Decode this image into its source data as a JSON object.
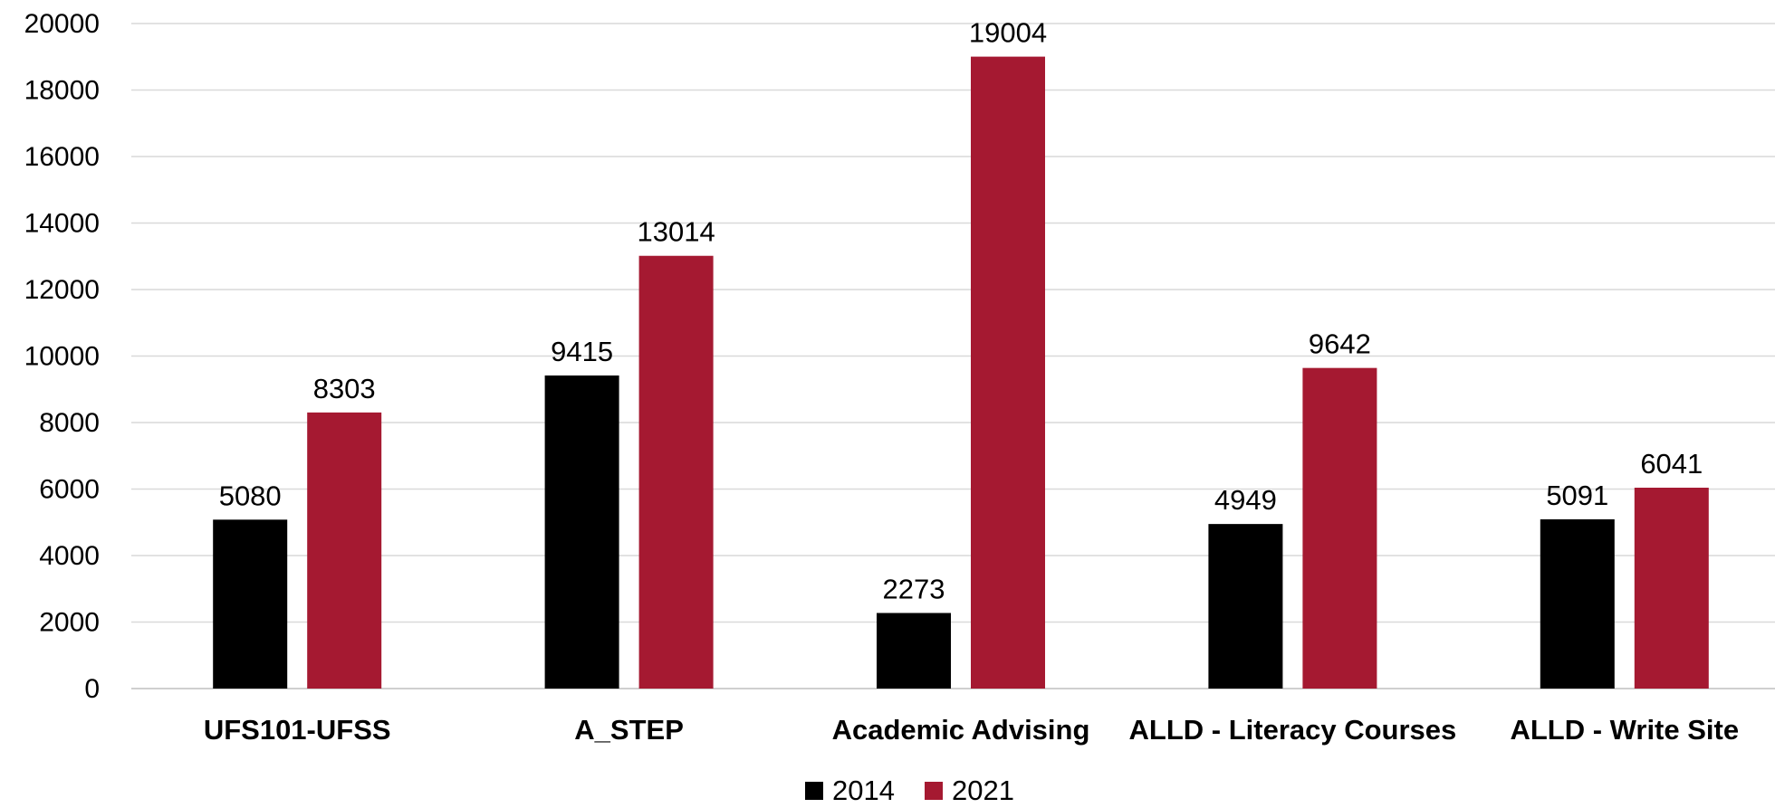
{
  "colors": {
    "series_2014": "#000000",
    "series_2021": "#A51931",
    "gridline": "#D9D9D9",
    "axis": "#BFBFBF"
  },
  "chart_data": {
    "type": "bar",
    "title": "",
    "xlabel": "",
    "ylabel": "",
    "categories": [
      "UFS101-UFSS",
      "A_STEP",
      "Academic Advising",
      "ALLD - Literacy Courses",
      "ALLD - Write Site"
    ],
    "series": [
      {
        "name": "2014",
        "values": [
          5080,
          9415,
          2273,
          4949,
          5091
        ]
      },
      {
        "name": "2021",
        "values": [
          8303,
          13014,
          19004,
          9642,
          6041
        ]
      }
    ],
    "ylim": [
      0,
      20000
    ],
    "yticks": [
      0,
      2000,
      4000,
      6000,
      8000,
      10000,
      12000,
      14000,
      16000,
      18000,
      20000
    ],
    "grid": true,
    "data_labels": true,
    "legend": "bottom-center"
  }
}
